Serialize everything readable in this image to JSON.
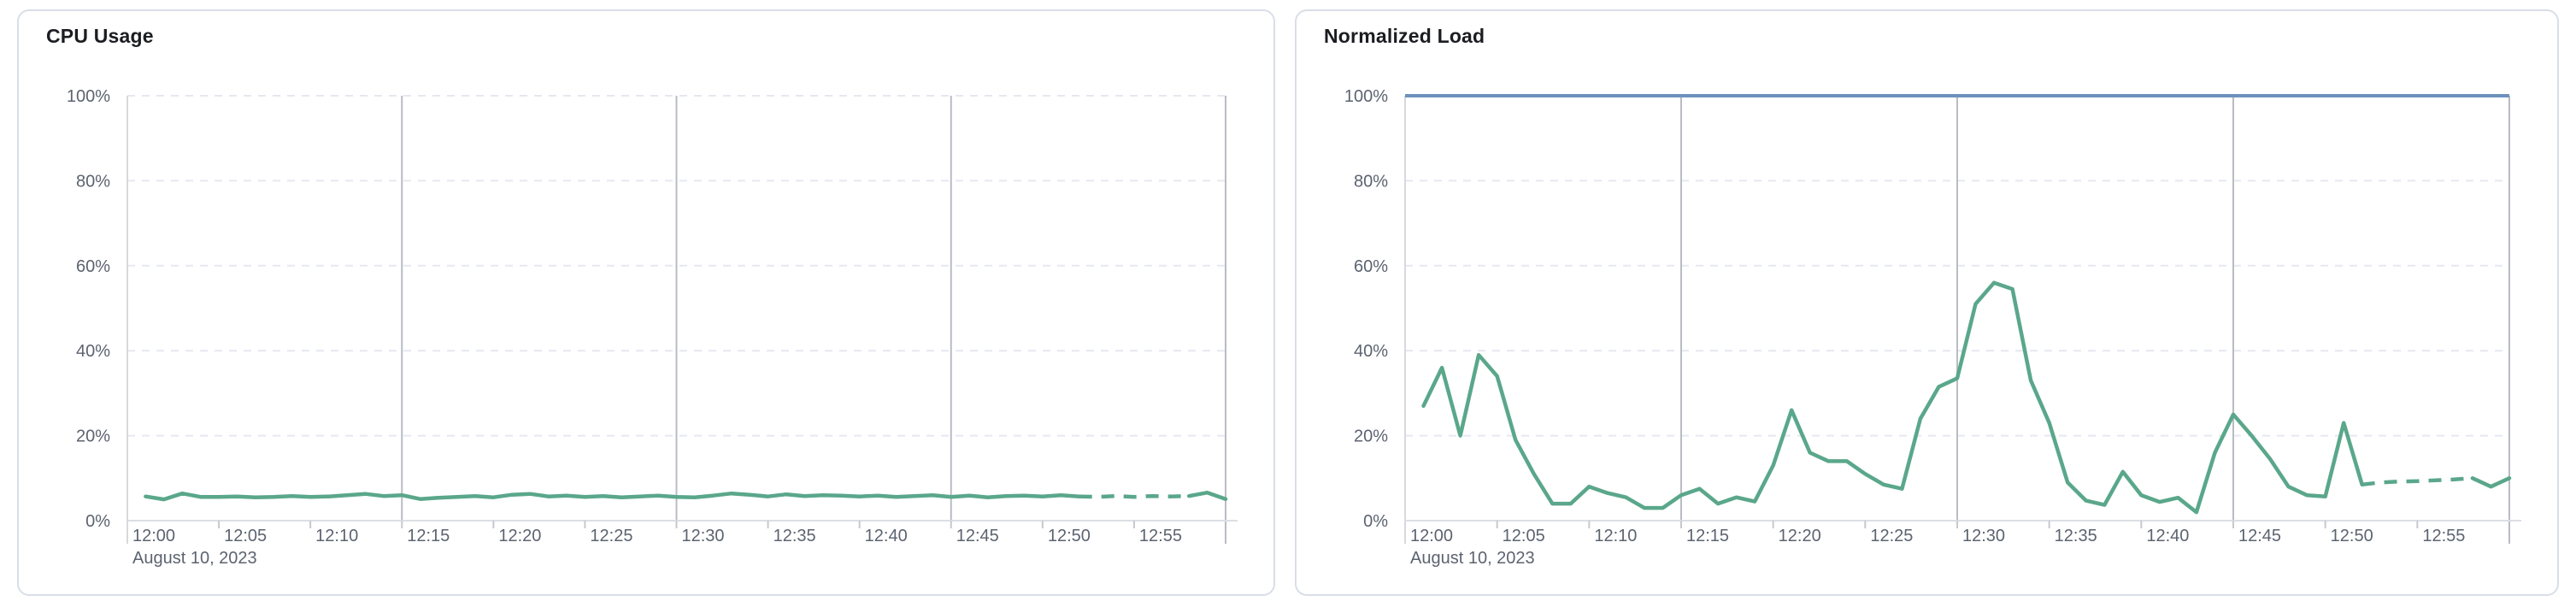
{
  "palette": {
    "series_green": "#5aa78b",
    "limit_blue": "#6d92bd",
    "grid_dashed": "#e6e8f0",
    "grid_solid": "#b9bcc3",
    "axis_edge": "#d7d9de",
    "axis_line": "#dcdee3",
    "tick": "#c6c9cf",
    "text_title": "#1b1d21",
    "text_axis": "#5c6370",
    "panel_border": "#d9dee8",
    "panel_bg": "#ffffff"
  },
  "chart_data": [
    {
      "type": "line",
      "title": "CPU Usage",
      "x_tick_labels": [
        "12:00",
        "12:05",
        "12:10",
        "12:15",
        "12:20",
        "12:25",
        "12:30",
        "12:35",
        "12:40",
        "12:45",
        "12:50",
        "12:55"
      ],
      "x_date_label": "August 10, 2023",
      "y_tick_labels": [
        "0%",
        "20%",
        "40%",
        "60%",
        "80%",
        "100%"
      ],
      "y_range": [
        0,
        100
      ],
      "x_range_minutes": [
        0,
        60
      ],
      "grid": {
        "horizontal": "dashed",
        "vertical_solid_every_min": 15,
        "legend": "none"
      },
      "series": [
        {
          "name": "CPU Usage",
          "unit": "%",
          "color": "#5aa78b",
          "points_solid": [
            [
              1,
              5.7
            ],
            [
              2,
              5.0
            ],
            [
              3,
              6.4
            ],
            [
              4,
              5.6
            ],
            [
              5,
              5.6
            ],
            [
              6,
              5.7
            ],
            [
              7,
              5.5
            ],
            [
              8,
              5.6
            ],
            [
              9,
              5.8
            ],
            [
              10,
              5.6
            ],
            [
              11,
              5.7
            ],
            [
              12,
              6.0
            ],
            [
              13,
              6.3
            ],
            [
              14,
              5.8
            ],
            [
              15,
              6.0
            ],
            [
              16,
              5.1
            ],
            [
              17,
              5.4
            ],
            [
              18,
              5.6
            ],
            [
              19,
              5.8
            ],
            [
              20,
              5.5
            ],
            [
              21,
              6.1
            ],
            [
              22,
              6.3
            ],
            [
              23,
              5.7
            ],
            [
              24,
              5.9
            ],
            [
              25,
              5.6
            ],
            [
              26,
              5.8
            ],
            [
              27,
              5.5
            ],
            [
              28,
              5.7
            ],
            [
              29,
              5.9
            ],
            [
              30,
              5.6
            ],
            [
              31,
              5.5
            ],
            [
              32,
              5.9
            ],
            [
              33,
              6.4
            ],
            [
              34,
              6.1
            ],
            [
              35,
              5.7
            ],
            [
              36,
              6.2
            ],
            [
              37,
              5.8
            ],
            [
              38,
              6.0
            ],
            [
              39,
              5.9
            ],
            [
              40,
              5.7
            ],
            [
              41,
              5.9
            ],
            [
              42,
              5.6
            ],
            [
              43,
              5.8
            ],
            [
              44,
              6.0
            ],
            [
              45,
              5.6
            ],
            [
              46,
              5.9
            ],
            [
              47,
              5.5
            ],
            [
              48,
              5.8
            ],
            [
              49,
              5.9
            ],
            [
              50,
              5.7
            ],
            [
              51,
              6.0
            ],
            [
              52,
              5.7
            ]
          ],
          "points_dashed": [
            [
              52,
              5.7
            ],
            [
              53,
              5.6
            ],
            [
              54,
              5.8
            ],
            [
              55,
              5.6
            ],
            [
              56,
              5.8
            ],
            [
              57,
              5.7
            ],
            [
              58,
              5.8
            ]
          ],
          "points_solid_tail": [
            [
              58,
              5.8
            ],
            [
              59,
              6.6
            ],
            [
              60,
              5.1
            ]
          ]
        }
      ]
    },
    {
      "type": "line",
      "title": "Normalized Load",
      "x_tick_labels": [
        "12:00",
        "12:05",
        "12:10",
        "12:15",
        "12:20",
        "12:25",
        "12:30",
        "12:35",
        "12:40",
        "12:45",
        "12:50",
        "12:55"
      ],
      "x_date_label": "August 10, 2023",
      "y_tick_labels": [
        "0%",
        "20%",
        "40%",
        "60%",
        "80%",
        "100%"
      ],
      "y_range": [
        0,
        100
      ],
      "x_range_minutes": [
        0,
        60
      ],
      "grid": {
        "horizontal": "dashed",
        "vertical_solid_every_min": 15,
        "legend": "none"
      },
      "limit_line": {
        "value": 100,
        "color": "#6d92bd"
      },
      "series": [
        {
          "name": "Normalized Load",
          "unit": "%",
          "color": "#5aa78b",
          "points_solid": [
            [
              1,
              27
            ],
            [
              2,
              36
            ],
            [
              3,
              20
            ],
            [
              4,
              39
            ],
            [
              5,
              34
            ],
            [
              6,
              19
            ],
            [
              7,
              11
            ],
            [
              8,
              4
            ],
            [
              9,
              4
            ],
            [
              10,
              8
            ],
            [
              11,
              6.5
            ],
            [
              12,
              5.5
            ],
            [
              13,
              3
            ],
            [
              14,
              3
            ],
            [
              15,
              6
            ],
            [
              16,
              7.5
            ],
            [
              17,
              4
            ],
            [
              18,
              5.5
            ],
            [
              19,
              4.5
            ],
            [
              20,
              13
            ],
            [
              21,
              26
            ],
            [
              22,
              16
            ],
            [
              23,
              14
            ],
            [
              24,
              14
            ],
            [
              25,
              11
            ],
            [
              26,
              8.5
            ],
            [
              27,
              7.5
            ],
            [
              28,
              24
            ],
            [
              29,
              31.5
            ],
            [
              30,
              33.5
            ],
            [
              31,
              51
            ],
            [
              32,
              56
            ],
            [
              33,
              54.5
            ],
            [
              34,
              33
            ],
            [
              35,
              23
            ],
            [
              36,
              9
            ],
            [
              37,
              4.7
            ],
            [
              38,
              3.7
            ],
            [
              39,
              11.5
            ],
            [
              40,
              6
            ],
            [
              41,
              4.4
            ],
            [
              42,
              5.4
            ],
            [
              43,
              2
            ],
            [
              44,
              16
            ],
            [
              45,
              25
            ],
            [
              46,
              20
            ],
            [
              47,
              14.5
            ],
            [
              48,
              8
            ],
            [
              49,
              6
            ],
            [
              50,
              5.7
            ],
            [
              51,
              23
            ],
            [
              52,
              8.5
            ]
          ],
          "points_dashed": [
            [
              52,
              8.5
            ],
            [
              53,
              9
            ],
            [
              54,
              9.2
            ],
            [
              55,
              9.3
            ],
            [
              56,
              9.5
            ],
            [
              57,
              9.7
            ],
            [
              58,
              10
            ]
          ],
          "points_solid_tail": [
            [
              58,
              10
            ],
            [
              59,
              8
            ],
            [
              60,
              10
            ]
          ]
        }
      ]
    }
  ]
}
